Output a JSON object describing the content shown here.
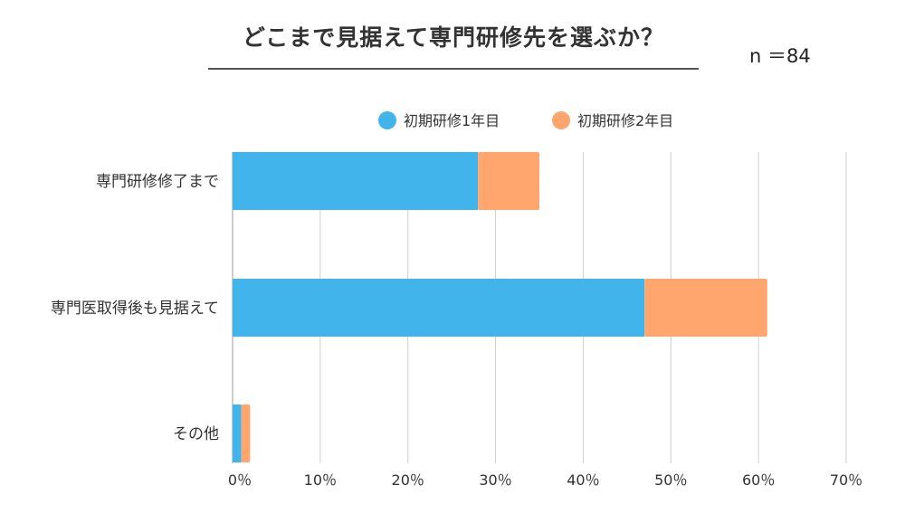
{
  "header": {
    "title": "どこまで見据えて専門研修先を選ぶか？",
    "sample_size": "n ＝84"
  },
  "chart_data": {
    "type": "bar",
    "orientation": "horizontal",
    "stacked": true,
    "categories": [
      "専門研修修了まで",
      "専門医取得後も見据えて",
      "その他"
    ],
    "series": [
      {
        "name": "初期研修1年目",
        "values": [
          28,
          47,
          1
        ],
        "color": "#41b4ec"
      },
      {
        "name": "初期研修2年目",
        "values": [
          7,
          14,
          1
        ],
        "color": "#ffa56e"
      }
    ],
    "xlim": [
      0,
      70
    ],
    "x_ticks": [
      0,
      10,
      20,
      30,
      40,
      50,
      60,
      70
    ],
    "x_tick_labels": [
      "0％",
      "10％",
      "20％",
      "30％",
      "40％",
      "50％",
      "60％",
      "70％"
    ],
    "grid": "vertical",
    "legend_position": "top"
  }
}
